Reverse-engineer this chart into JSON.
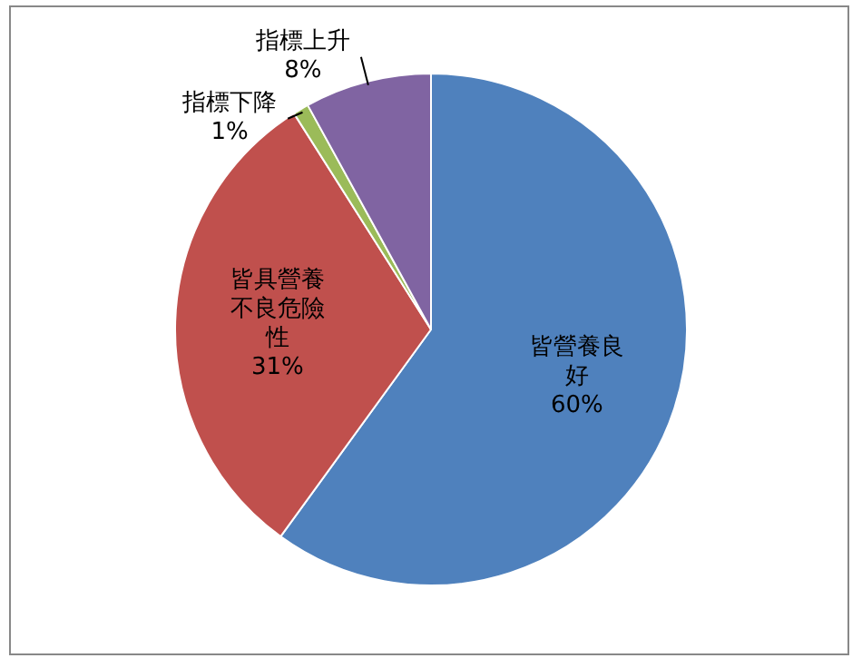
{
  "chart_data": {
    "type": "pie",
    "categories": [
      "皆營養良好",
      "皆具營養不良危險性",
      "指標下降",
      "指標上升"
    ],
    "values": [
      60,
      31,
      1,
      8
    ],
    "value_labels": [
      "60%",
      "31%",
      "1%",
      "8%"
    ],
    "colors": [
      "#4f81bd",
      "#c0504d",
      "#9bbb59",
      "#8064a2"
    ],
    "legend": false
  }
}
